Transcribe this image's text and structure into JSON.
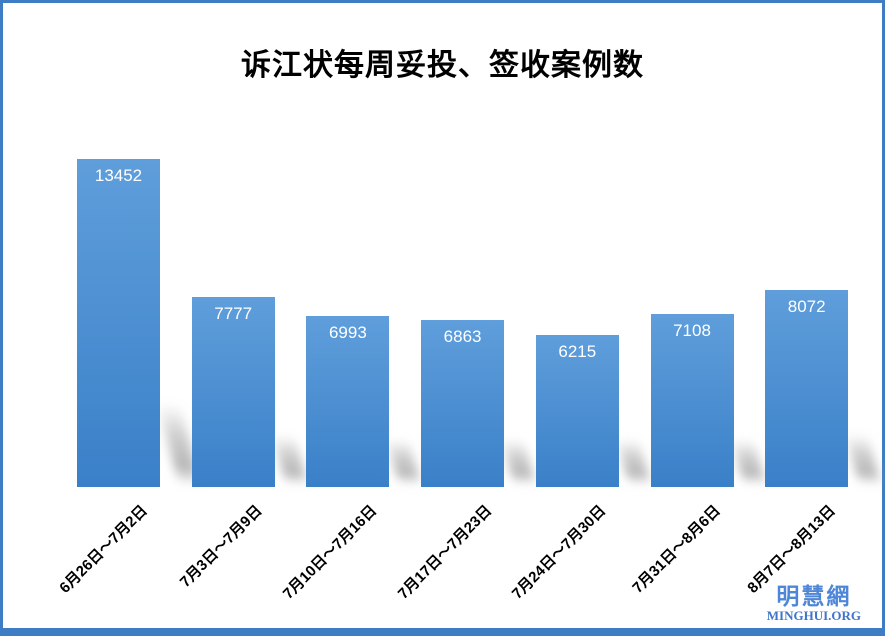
{
  "title": "诉江状每周妥投、签收案例数",
  "chart_data": {
    "type": "bar",
    "title": "诉江状每周妥投、签收案例数",
    "categories": [
      "6月26日～7月2日",
      "7月3日～7月9日",
      "7月10日～7月16日",
      "7月17日～7月23日",
      "7月24日～7月30日",
      "7月31日～8月6日",
      "8月7日～8月13日"
    ],
    "values": [
      13452,
      7777,
      6993,
      6863,
      6215,
      7108,
      8072
    ],
    "xlabel": "",
    "ylabel": "",
    "ylim": [
      0,
      13452
    ],
    "grid": false,
    "legend": "none",
    "data_labels": "inside-top",
    "data_label_color": "#ffffff",
    "bar_color_top": "#5f9edb",
    "bar_color_bottom": "#3a80c8"
  },
  "frame": {
    "border_color": "#3e7dc3",
    "background": "#ffffff"
  },
  "watermark": {
    "cjk": "明慧網",
    "latin": "MINGHUI.ORG",
    "cjk_color": "#4f87d8",
    "latin_color": "#3f74c9"
  }
}
